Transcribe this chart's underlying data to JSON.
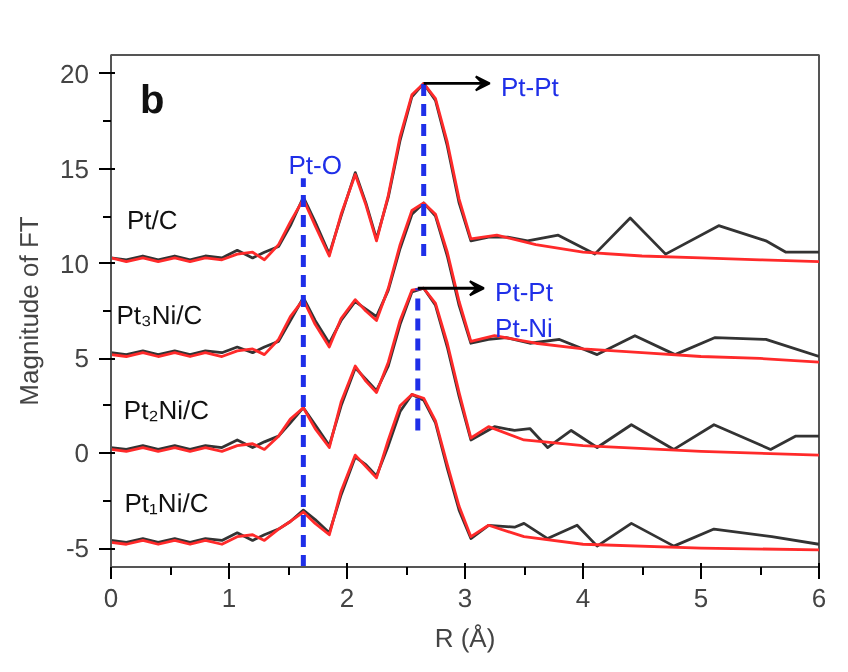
{
  "chart_data": {
    "type": "line",
    "xlabel": "R (Å)",
    "ylabel": "Magnitude of FT",
    "xlim": [
      0,
      6
    ],
    "ylim": [
      -6,
      21
    ],
    "xticks": [
      0,
      1,
      2,
      3,
      4,
      5,
      6
    ],
    "yticks": [
      -5,
      0,
      5,
      10,
      15,
      20
    ],
    "grid": false,
    "line_style": "solid",
    "series": [
      {
        "color": "#333333",
        "x": [
          0,
          0.13,
          0.27,
          0.4,
          0.54,
          0.67,
          0.8,
          0.94,
          1.07,
          1.2,
          1.3,
          1.42,
          1.52,
          1.63,
          1.73,
          1.85,
          1.95,
          2.07,
          2.16,
          2.25,
          2.35,
          2.45,
          2.55,
          2.65,
          2.75,
          2.85,
          2.95,
          3.05,
          3.2,
          3.36,
          3.53,
          3.79,
          4.1,
          4.4,
          4.7,
          5.15,
          5.55,
          5.72,
          6
        ],
        "values": [
          10.3,
          10.2,
          10.4,
          10.2,
          10.4,
          10.2,
          10.4,
          10.3,
          10.7,
          10.3,
          10.6,
          10.9,
          12.0,
          13.5,
          12.2,
          10.5,
          12.5,
          14.8,
          13.2,
          11.3,
          13.5,
          16.5,
          18.8,
          19.5,
          18.6,
          16.2,
          13.2,
          11.2,
          11.4,
          11.4,
          11.2,
          11.5,
          10.5,
          12.4,
          10.5,
          12.0,
          11.2,
          10.6,
          10.6
        ]
      },
      {
        "color": "#ff2a2a",
        "x": [
          0,
          0.13,
          0.27,
          0.4,
          0.54,
          0.67,
          0.8,
          0.94,
          1.07,
          1.2,
          1.3,
          1.42,
          1.52,
          1.63,
          1.73,
          1.85,
          1.95,
          2.07,
          2.16,
          2.25,
          2.35,
          2.45,
          2.55,
          2.65,
          2.75,
          2.85,
          2.95,
          3.05,
          3.27,
          3.6,
          4,
          4.5,
          5,
          5.5,
          6
        ],
        "values": [
          10.3,
          10.1,
          10.3,
          10.1,
          10.3,
          10.1,
          10.3,
          10.2,
          10.5,
          10.6,
          10.2,
          11.0,
          12.2,
          13.4,
          12.0,
          10.4,
          12.6,
          14.7,
          13.1,
          11.2,
          13.6,
          16.7,
          18.9,
          19.5,
          18.7,
          16.4,
          13.4,
          11.3,
          11.5,
          11.0,
          10.6,
          10.4,
          10.3,
          10.2,
          10.1
        ]
      },
      {
        "color": "#333333",
        "x": [
          0,
          0.13,
          0.27,
          0.4,
          0.54,
          0.67,
          0.8,
          0.94,
          1.07,
          1.2,
          1.3,
          1.42,
          1.52,
          1.63,
          1.73,
          1.85,
          1.95,
          2.07,
          2.16,
          2.25,
          2.35,
          2.45,
          2.55,
          2.65,
          2.75,
          2.85,
          2.95,
          3.05,
          3.2,
          3.35,
          3.55,
          3.8,
          4.12,
          4.44,
          4.78,
          5.12,
          5.55,
          6
        ],
        "values": [
          5.3,
          5.2,
          5.4,
          5.2,
          5.4,
          5.2,
          5.4,
          5.3,
          5.6,
          5.3,
          5.6,
          5.9,
          7.0,
          8.2,
          7.0,
          5.8,
          7.0,
          8.0,
          7.6,
          7.2,
          8.6,
          10.8,
          12.6,
          13.2,
          12.5,
          10.4,
          7.8,
          5.8,
          6.0,
          6.1,
          5.8,
          6.0,
          5.2,
          6.2,
          5.2,
          6.1,
          6.0,
          5.1
        ]
      },
      {
        "color": "#ff2a2a",
        "x": [
          0,
          0.13,
          0.27,
          0.4,
          0.54,
          0.67,
          0.8,
          0.94,
          1.07,
          1.2,
          1.3,
          1.42,
          1.52,
          1.63,
          1.73,
          1.85,
          1.95,
          2.07,
          2.16,
          2.25,
          2.35,
          2.45,
          2.55,
          2.65,
          2.75,
          2.85,
          2.95,
          3.05,
          3.25,
          3.6,
          4,
          4.5,
          5,
          5.5,
          6
        ],
        "values": [
          5.2,
          5.1,
          5.3,
          5.1,
          5.3,
          5.1,
          5.3,
          5.1,
          5.4,
          5.5,
          5.2,
          6.0,
          7.2,
          8.1,
          6.8,
          5.6,
          7.1,
          8.1,
          7.5,
          7.0,
          8.7,
          11.0,
          12.8,
          13.2,
          12.6,
          10.6,
          8.0,
          5.9,
          6.2,
          5.8,
          5.5,
          5.3,
          5.1,
          5.0,
          4.8
        ]
      },
      {
        "color": "#333333",
        "x": [
          0,
          0.13,
          0.27,
          0.4,
          0.54,
          0.67,
          0.8,
          0.94,
          1.07,
          1.2,
          1.3,
          1.42,
          1.52,
          1.63,
          1.73,
          1.85,
          1.95,
          2.07,
          2.16,
          2.25,
          2.35,
          2.45,
          2.55,
          2.65,
          2.75,
          2.85,
          2.95,
          3.05,
          3.25,
          3.42,
          3.55,
          3.7,
          3.9,
          4.12,
          4.41,
          4.77,
          5.11,
          5.59,
          5.8,
          6
        ],
        "values": [
          0.3,
          0.2,
          0.4,
          0.2,
          0.4,
          0.2,
          0.4,
          0.3,
          0.7,
          0.3,
          0.6,
          0.9,
          1.6,
          2.4,
          1.5,
          0.4,
          2.5,
          4.5,
          3.9,
          3.3,
          4.6,
          6.8,
          8.5,
          8.7,
          7.8,
          5.6,
          3.0,
          0.7,
          1.4,
          1.2,
          1.3,
          0.3,
          1.2,
          0.3,
          1.5,
          0.2,
          1.5,
          0.2,
          0.9,
          0.9
        ]
      },
      {
        "color": "#ff2a2a",
        "x": [
          0,
          0.13,
          0.27,
          0.4,
          0.54,
          0.67,
          0.8,
          0.94,
          1.07,
          1.2,
          1.3,
          1.42,
          1.52,
          1.63,
          1.73,
          1.85,
          1.95,
          2.07,
          2.16,
          2.25,
          2.35,
          2.45,
          2.55,
          2.65,
          2.75,
          2.85,
          2.95,
          3.05,
          3.2,
          3.5,
          4,
          5,
          6
        ],
        "values": [
          0.2,
          0.1,
          0.3,
          0.1,
          0.3,
          0.1,
          0.3,
          0.1,
          0.4,
          0.5,
          0.2,
          0.9,
          1.8,
          2.4,
          1.3,
          0.3,
          2.7,
          4.6,
          3.8,
          3.2,
          4.8,
          7.0,
          8.6,
          8.7,
          7.9,
          5.8,
          3.2,
          0.8,
          1.4,
          0.7,
          0.4,
          0.1,
          -0.1
        ]
      },
      {
        "color": "#333333",
        "x": [
          0,
          0.13,
          0.27,
          0.4,
          0.54,
          0.67,
          0.8,
          0.94,
          1.07,
          1.2,
          1.3,
          1.42,
          1.52,
          1.63,
          1.73,
          1.85,
          1.95,
          2.07,
          2.16,
          2.25,
          2.35,
          2.45,
          2.55,
          2.65,
          2.75,
          2.85,
          2.95,
          3.05,
          3.2,
          3.42,
          3.5,
          3.7,
          3.95,
          4.12,
          4.41,
          4.77,
          5.11,
          5.6,
          6
        ],
        "values": [
          -4.6,
          -4.7,
          -4.5,
          -4.7,
          -4.5,
          -4.7,
          -4.5,
          -4.6,
          -4.2,
          -4.6,
          -4.3,
          -4.0,
          -3.6,
          -3.0,
          -3.5,
          -4.2,
          -2.2,
          -0.2,
          -0.6,
          -1.2,
          0.4,
          2.2,
          3.1,
          2.8,
          1.6,
          -0.8,
          -3.0,
          -4.5,
          -3.8,
          -3.9,
          -3.7,
          -4.5,
          -3.8,
          -4.9,
          -3.7,
          -4.9,
          -4.0,
          -4.4,
          -4.8
        ]
      },
      {
        "color": "#ff2a2a",
        "x": [
          0,
          0.13,
          0.27,
          0.4,
          0.54,
          0.67,
          0.8,
          0.94,
          1.07,
          1.2,
          1.3,
          1.42,
          1.52,
          1.63,
          1.73,
          1.85,
          1.95,
          2.07,
          2.16,
          2.25,
          2.35,
          2.45,
          2.55,
          2.65,
          2.75,
          2.85,
          2.95,
          3.05,
          3.2,
          3.5,
          4,
          5,
          6
        ],
        "values": [
          -4.7,
          -4.8,
          -4.6,
          -4.8,
          -4.6,
          -4.8,
          -4.6,
          -4.8,
          -4.4,
          -4.3,
          -4.6,
          -4.0,
          -3.6,
          -3.1,
          -3.7,
          -4.3,
          -2.0,
          -0.1,
          -0.7,
          -1.3,
          0.7,
          2.5,
          3.1,
          2.9,
          1.7,
          -0.6,
          -2.8,
          -4.4,
          -3.8,
          -4.4,
          -4.8,
          -5.0,
          -5.1
        ]
      },
      {
        "color": "#1f2fe8",
        "line_style": "dashed",
        "x": [
          1.63,
          1.63
        ],
        "values": [
          -6,
          14.5
        ]
      },
      {
        "color": "#1f2fe8",
        "line_style": "dashed",
        "x": [
          2.65,
          2.65
        ],
        "values": [
          10.4,
          19.5
        ]
      },
      {
        "color": "#1f2fe8",
        "line_style": "dashed",
        "x": [
          2.6,
          2.6
        ],
        "values": [
          1.2,
          8.7
        ]
      }
    ],
    "annotations": [
      "b",
      "Pt/C",
      "Pt₃Ni/C",
      "Pt₂Ni/C",
      "Pt₁Ni/C",
      "Pt-O",
      "Pt-Pt",
      "Pt-Pt",
      "Pt-Ni"
    ]
  }
}
